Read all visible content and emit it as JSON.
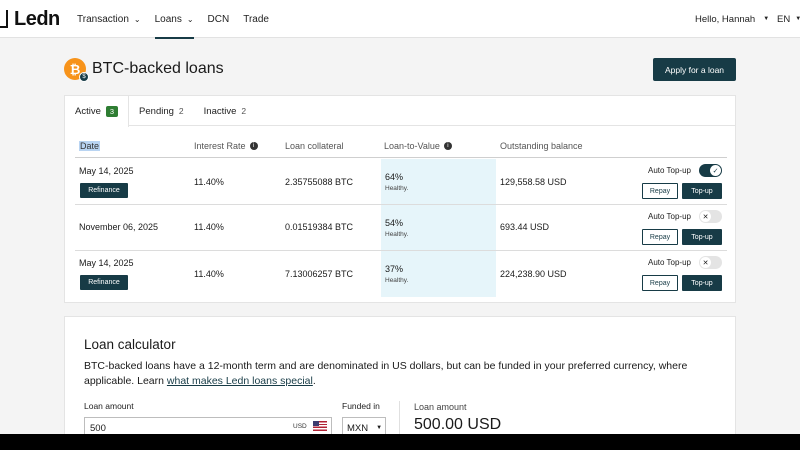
{
  "brand": {
    "name": "Ledn"
  },
  "nav": {
    "items": [
      {
        "label": "Transaction",
        "chevron": true
      },
      {
        "label": "Loans",
        "chevron": true,
        "active": true
      },
      {
        "label": "DCN",
        "chevron": false
      },
      {
        "label": "Trade",
        "chevron": false
      }
    ],
    "greeting": "Hello, Hannah",
    "language": "EN"
  },
  "page": {
    "title": "BTC-backed loans",
    "apply_label": "Apply for a loan"
  },
  "tabs": [
    {
      "label": "Active",
      "count": "3"
    },
    {
      "label": "Pending",
      "count": "2"
    },
    {
      "label": "Inactive",
      "count": "2"
    }
  ],
  "table": {
    "headers": {
      "date": "Date",
      "rate": "Interest Rate",
      "collateral": "Loan collateral",
      "ltv": "Loan-to-Value",
      "balance": "Outstanding balance"
    },
    "auto_topup_label": "Auto Top-up",
    "refinance_label": "Refinance",
    "repay_label": "Repay",
    "topup_label": "Top-up",
    "rows": [
      {
        "date": "May 14, 2025",
        "rate": "11.40%",
        "collateral": "2.35755088 BTC",
        "ltv": "64%",
        "ltv_state": "Healthy.",
        "balance": "129,558.58 USD",
        "refinance": true,
        "auto_topup": true
      },
      {
        "date": "November 06, 2025",
        "rate": "11.40%",
        "collateral": "0.01519384 BTC",
        "ltv": "54%",
        "ltv_state": "Healthy.",
        "balance": "693.44 USD",
        "refinance": false,
        "auto_topup": false
      },
      {
        "date": "May 14, 2025",
        "rate": "11.40%",
        "collateral": "7.13006257 BTC",
        "ltv": "37%",
        "ltv_state": "Healthy.",
        "balance": "224,238.90 USD",
        "refinance": true,
        "auto_topup": false
      }
    ]
  },
  "calculator": {
    "title": "Loan calculator",
    "description": "BTC-backed loans have a 12-month term and are denominated in US dollars, but can be funded in your preferred currency, where applicable. Learn ",
    "link_text": "what makes Ledn loans special",
    "description_end": ".",
    "amount_label": "Loan amount",
    "amount_value": "500",
    "amount_currency": "USD",
    "funded_label": "Funded in",
    "funded_value": "MXN",
    "result_label": "Loan amount",
    "result_value": "500.00 USD"
  },
  "colors": {
    "primary": "#173b46",
    "bitcoin": "#f7931a",
    "ltv_highlight": "#e6f5fa",
    "active_count": "#2e7d32"
  }
}
